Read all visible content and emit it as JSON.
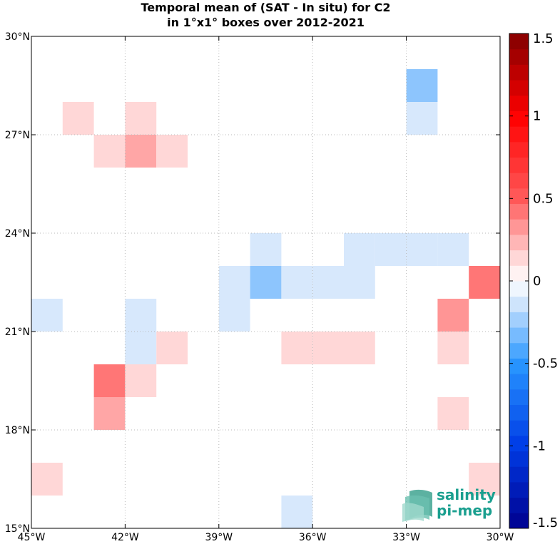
{
  "title_line1": "Temporal mean of (SAT - In situ) for C2",
  "title_line2": "in 1°x1° boxes over 2012-2021",
  "logo": {
    "line1": "salinity",
    "line2": "pi-mep"
  },
  "chart_data": {
    "type": "heatmap",
    "xlim": [
      -45,
      -30
    ],
    "ylim": [
      15,
      30
    ],
    "x_ticks": [
      -45,
      -42,
      -39,
      -36,
      -33,
      -30
    ],
    "x_tick_labels": [
      "45°W",
      "42°W",
      "39°W",
      "36°W",
      "33°W",
      "30°W"
    ],
    "y_ticks": [
      15,
      18,
      21,
      24,
      27,
      30
    ],
    "y_tick_labels": [
      "15°N",
      "18°N",
      "21°N",
      "24°N",
      "27°N",
      "30°N"
    ],
    "grid": true,
    "colorbar": {
      "range": [
        -1.5,
        1.5
      ],
      "ticks": [
        -1.5,
        -1,
        -0.5,
        0,
        0.5,
        1,
        1.5
      ],
      "tick_labels": [
        "-1.5",
        "-1",
        "-0.5",
        "0",
        "0.5",
        "1",
        "1.5"
      ],
      "steps": 32,
      "placement": "right"
    },
    "cells": [
      {
        "lon": -33,
        "lat": 28,
        "value": -0.28
      },
      {
        "lon": -33,
        "lat": 27,
        "value": -0.12
      },
      {
        "lon": -44,
        "lat": 27,
        "value": 0.14
      },
      {
        "lon": -42,
        "lat": 27,
        "value": 0.14
      },
      {
        "lon": -43,
        "lat": 26,
        "value": 0.14
      },
      {
        "lon": -42,
        "lat": 26,
        "value": 0.28
      },
      {
        "lon": -41,
        "lat": 26,
        "value": 0.14
      },
      {
        "lon": -38,
        "lat": 23,
        "value": -0.12
      },
      {
        "lon": -35,
        "lat": 23,
        "value": -0.12
      },
      {
        "lon": -34,
        "lat": 23,
        "value": -0.12
      },
      {
        "lon": -33,
        "lat": 23,
        "value": -0.12
      },
      {
        "lon": -32,
        "lat": 23,
        "value": -0.12
      },
      {
        "lon": -39,
        "lat": 22,
        "value": -0.12
      },
      {
        "lon": -38,
        "lat": 22,
        "value": -0.28
      },
      {
        "lon": -37,
        "lat": 22,
        "value": -0.12
      },
      {
        "lon": -36,
        "lat": 22,
        "value": -0.12
      },
      {
        "lon": -35,
        "lat": 22,
        "value": -0.12
      },
      {
        "lon": -31,
        "lat": 22,
        "value": 0.42
      },
      {
        "lon": -45,
        "lat": 21,
        "value": -0.12
      },
      {
        "lon": -42,
        "lat": 21,
        "value": -0.12
      },
      {
        "lon": -39,
        "lat": 21,
        "value": -0.12
      },
      {
        "lon": -32,
        "lat": 21,
        "value": 0.33
      },
      {
        "lon": -42,
        "lat": 20,
        "value": -0.12
      },
      {
        "lon": -41,
        "lat": 20,
        "value": 0.14
      },
      {
        "lon": -37,
        "lat": 20,
        "value": 0.14
      },
      {
        "lon": -36,
        "lat": 20,
        "value": 0.14
      },
      {
        "lon": -35,
        "lat": 20,
        "value": 0.14
      },
      {
        "lon": -32,
        "lat": 20,
        "value": 0.14
      },
      {
        "lon": -43,
        "lat": 19,
        "value": 0.42
      },
      {
        "lon": -42,
        "lat": 19,
        "value": 0.14
      },
      {
        "lon": -43,
        "lat": 18,
        "value": 0.28
      },
      {
        "lon": -32,
        "lat": 18,
        "value": 0.14
      },
      {
        "lon": -45,
        "lat": 16,
        "value": 0.14
      },
      {
        "lon": -31,
        "lat": 16,
        "value": 0.14
      },
      {
        "lon": -37,
        "lat": 15,
        "value": -0.12
      }
    ]
  }
}
